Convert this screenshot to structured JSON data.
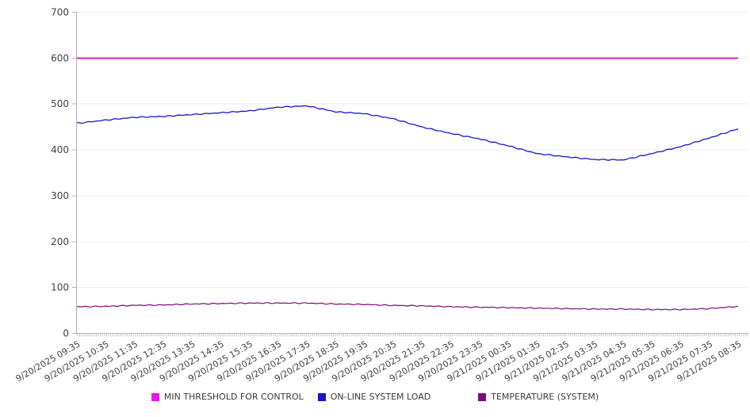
{
  "chart_data": {
    "type": "line",
    "title": "",
    "xlabel": "",
    "ylabel": "",
    "ylim": [
      0,
      700
    ],
    "yticks": [
      0,
      100,
      200,
      300,
      400,
      500,
      600,
      700
    ],
    "grid": true,
    "legend_position": "bottom",
    "x": [
      "9/20/2025 09:35",
      "9/20/2025 10:35",
      "9/20/2025 11:35",
      "9/20/2025 12:35",
      "9/20/2025 13:35",
      "9/20/2025 14:35",
      "9/20/2025 15:35",
      "9/20/2025 16:35",
      "9/20/2025 17:35",
      "9/20/2025 18:35",
      "9/20/2025 19:35",
      "9/20/2025 20:35",
      "9/20/2025 21:35",
      "9/20/2025 22:35",
      "9/20/2025 23:35",
      "9/21/2025 00:35",
      "9/21/2025 01:35",
      "9/21/2025 02:35",
      "9/21/2025 03:35",
      "9/21/2025 04:35",
      "9/21/2025 05:35",
      "9/21/2025 06:35",
      "9/21/2025 07:35",
      "9/21/2025 08:35"
    ],
    "series": [
      {
        "name": "MIN THRESHOLD FOR CONTROL",
        "color": "#e916e9",
        "line_width": 2,
        "values": [
          600,
          600,
          600,
          600,
          600,
          600,
          600,
          600,
          600,
          600,
          600,
          600,
          600,
          600,
          600,
          600,
          600,
          600,
          600,
          600,
          600,
          600,
          600,
          600
        ]
      },
      {
        "name": "ON-LINE SYSTEM LOAD",
        "color": "#1515cd",
        "line_width": 1.3,
        "values": [
          458,
          465,
          471,
          473,
          477,
          481,
          485,
          493,
          496,
          483,
          479,
          468,
          450,
          436,
          424,
          409,
          392,
          385,
          379,
          378,
          392,
          407,
          426,
          446
        ]
      },
      {
        "name": "TEMPERATURE (SYSTEM)",
        "color": "#7c0a7c",
        "line_width": 1.2,
        "values": [
          58,
          59,
          61,
          62,
          64,
          65,
          66,
          66,
          66,
          64,
          63,
          61,
          60,
          58,
          57,
          56,
          55,
          54,
          53,
          53,
          52,
          52,
          54,
          59
        ]
      }
    ]
  },
  "colors": {
    "background": "#ffffff",
    "grid": "#ececec",
    "axis": "#b3b3b3",
    "minor_tick": "#c9c9c9",
    "tick_label": "#3f3f3f"
  }
}
